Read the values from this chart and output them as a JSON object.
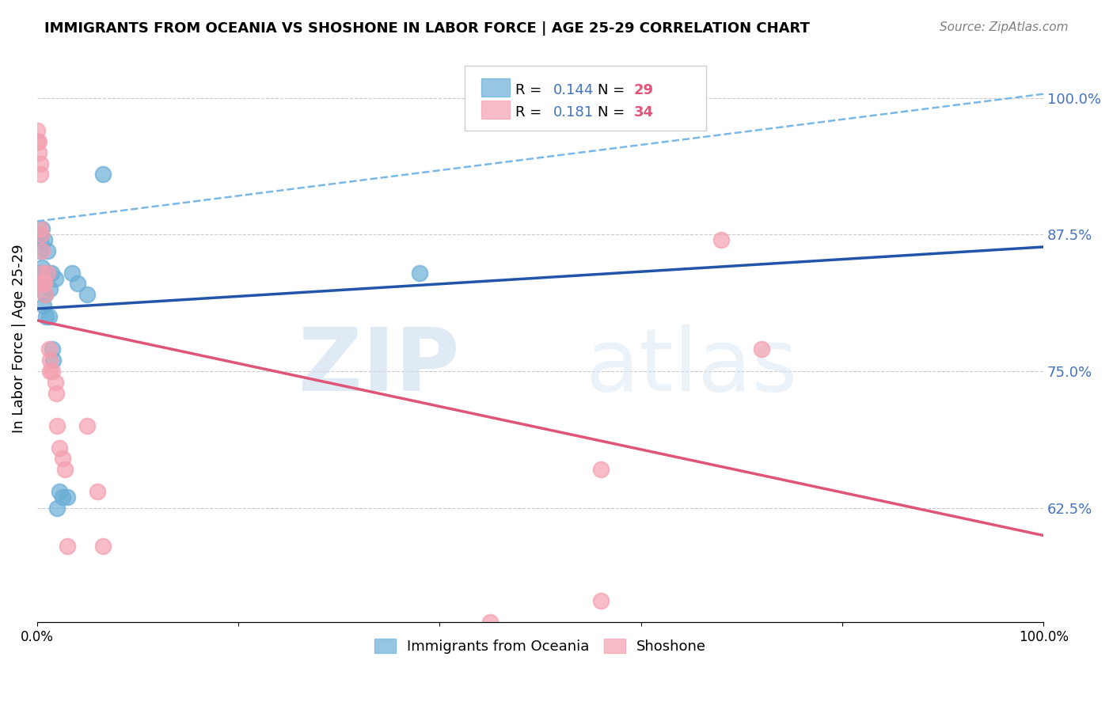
{
  "title": "IMMIGRANTS FROM OCEANIA VS SHOSHONE IN LABOR FORCE | AGE 25-29 CORRELATION CHART",
  "source": "Source: ZipAtlas.com",
  "xlabel": "",
  "ylabel": "In Labor Force | Age 25-29",
  "xlim": [
    0.0,
    1.0
  ],
  "ylim": [
    0.52,
    1.04
  ],
  "yticks": [
    0.625,
    0.75,
    0.875,
    1.0
  ],
  "ytick_labels": [
    "62.5%",
    "75.0%",
    "87.5%",
    "100.0%"
  ],
  "xticks": [
    0.0,
    0.2,
    0.4,
    0.6,
    0.8,
    1.0
  ],
  "xtick_labels": [
    "0.0%",
    "",
    "",
    "",
    "",
    "100.0%"
  ],
  "legend_r_blue": "0.144",
  "legend_n_blue": "29",
  "legend_r_pink": "0.181",
  "legend_n_pink": "34",
  "blue_color": "#6aaed6",
  "pink_color": "#f4a0b0",
  "blue_line_color": "#2255aa",
  "pink_line_color": "#e05577",
  "dashed_line_color": "#7ab8e8",
  "watermark_zip": "ZIP",
  "watermark_atlas": "atlas",
  "blue_x": [
    0.003,
    0.003,
    0.003,
    0.003,
    0.003,
    0.005,
    0.005,
    0.005,
    0.006,
    0.007,
    0.008,
    0.009,
    0.01,
    0.011,
    0.012,
    0.013,
    0.014,
    0.015,
    0.016,
    0.018,
    0.02,
    0.022,
    0.025,
    0.03,
    0.035,
    0.04,
    0.05,
    0.065,
    0.38
  ],
  "blue_y": [
    0.875,
    0.87,
    0.86,
    0.84,
    0.83,
    0.88,
    0.845,
    0.83,
    0.81,
    0.87,
    0.82,
    0.8,
    0.86,
    0.84,
    0.8,
    0.825,
    0.84,
    0.77,
    0.76,
    0.835,
    0.625,
    0.64,
    0.635,
    0.635,
    0.84,
    0.83,
    0.82,
    0.93,
    0.84
  ],
  "pink_x": [
    0.0,
    0.0,
    0.002,
    0.002,
    0.003,
    0.003,
    0.003,
    0.003,
    0.004,
    0.005,
    0.005,
    0.006,
    0.007,
    0.008,
    0.01,
    0.012,
    0.013,
    0.013,
    0.015,
    0.018,
    0.019,
    0.02,
    0.022,
    0.025,
    0.028,
    0.03,
    0.05,
    0.06,
    0.065,
    0.68,
    0.72,
    0.56,
    0.56,
    0.45
  ],
  "pink_y": [
    0.97,
    0.96,
    0.96,
    0.95,
    0.94,
    0.93,
    0.88,
    0.83,
    0.875,
    0.86,
    0.84,
    0.83,
    0.83,
    0.82,
    0.84,
    0.77,
    0.76,
    0.75,
    0.75,
    0.74,
    0.73,
    0.7,
    0.68,
    0.67,
    0.66,
    0.59,
    0.7,
    0.64,
    0.59,
    0.87,
    0.77,
    0.66,
    0.54,
    0.52
  ],
  "background_color": "#ffffff",
  "grid_color": "#cccccc"
}
